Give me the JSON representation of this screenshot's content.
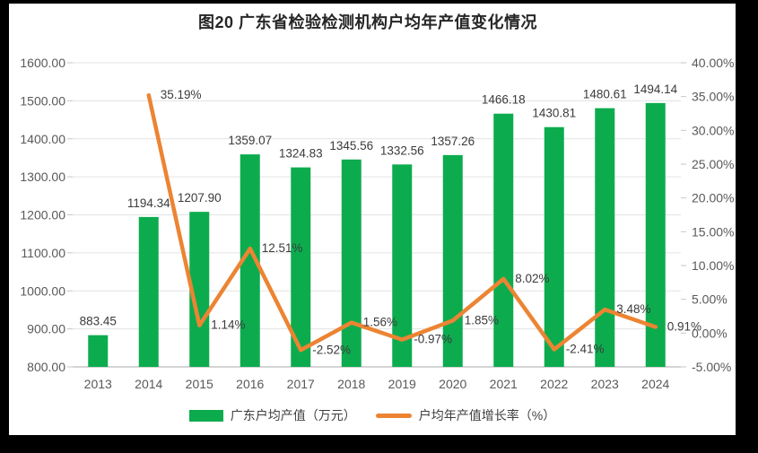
{
  "title": "图20 广东省检验检测机构户均年产值变化情况",
  "chart_data": {
    "type": "bar",
    "subtype": "bar-line-combo",
    "categories": [
      "2013",
      "2014",
      "2015",
      "2016",
      "2017",
      "2018",
      "2019",
      "2020",
      "2021",
      "2022",
      "2023",
      "2024"
    ],
    "series": [
      {
        "name": "广东户均产值（万元）",
        "chart": "bar",
        "axis": "left",
        "color": "#0CAC4E",
        "values": [
          883.45,
          1194.34,
          1207.9,
          1359.07,
          1324.83,
          1345.56,
          1332.56,
          1357.26,
          1466.18,
          1430.81,
          1480.61,
          1494.14
        ],
        "labels": [
          "883.45",
          "1194.34",
          "1207.90",
          "1359.07",
          "1324.83",
          "1345.56",
          "1332.56",
          "1357.26",
          "1466.18",
          "1430.81",
          "1480.61",
          "1494.14"
        ]
      },
      {
        "name": "户均年产值增长率（%）",
        "chart": "line",
        "axis": "right",
        "color": "#EC8433",
        "values": [
          null,
          35.19,
          1.14,
          12.51,
          -2.52,
          1.56,
          -0.97,
          1.85,
          8.02,
          -2.41,
          3.48,
          0.91
        ],
        "labels": [
          null,
          "35.19%",
          "1.14%",
          "12.51%",
          "-2.52%",
          "1.56%",
          "-0.97%",
          "1.85%",
          "8.02%",
          "-2.41%",
          "3.48%",
          "0.91%"
        ]
      }
    ],
    "left_axis": {
      "min": 800,
      "max": 1600,
      "step": 100,
      "tick_labels": [
        "800.00",
        "900.00",
        "1000.00",
        "1100.00",
        "1200.00",
        "1300.00",
        "1400.00",
        "1500.00",
        "1600.00"
      ]
    },
    "right_axis": {
      "min": -5,
      "max": 40,
      "step": 5,
      "tick_labels": [
        "-5.00%",
        "0.00%",
        "5.00%",
        "10.00%",
        "15.00%",
        "20.00%",
        "25.00%",
        "30.00%",
        "35.00%",
        "40.00%"
      ]
    },
    "grid": true,
    "legend_position": "bottom"
  },
  "styles": {
    "frame_color": "#000000",
    "page_background": "#ffffff",
    "grid_color": "#E3E3E3",
    "axis_line_color": "#C6C6C6",
    "tick_text_color": "#595959",
    "data_label_color": "#3B3B3B",
    "title_color": "#262626"
  }
}
